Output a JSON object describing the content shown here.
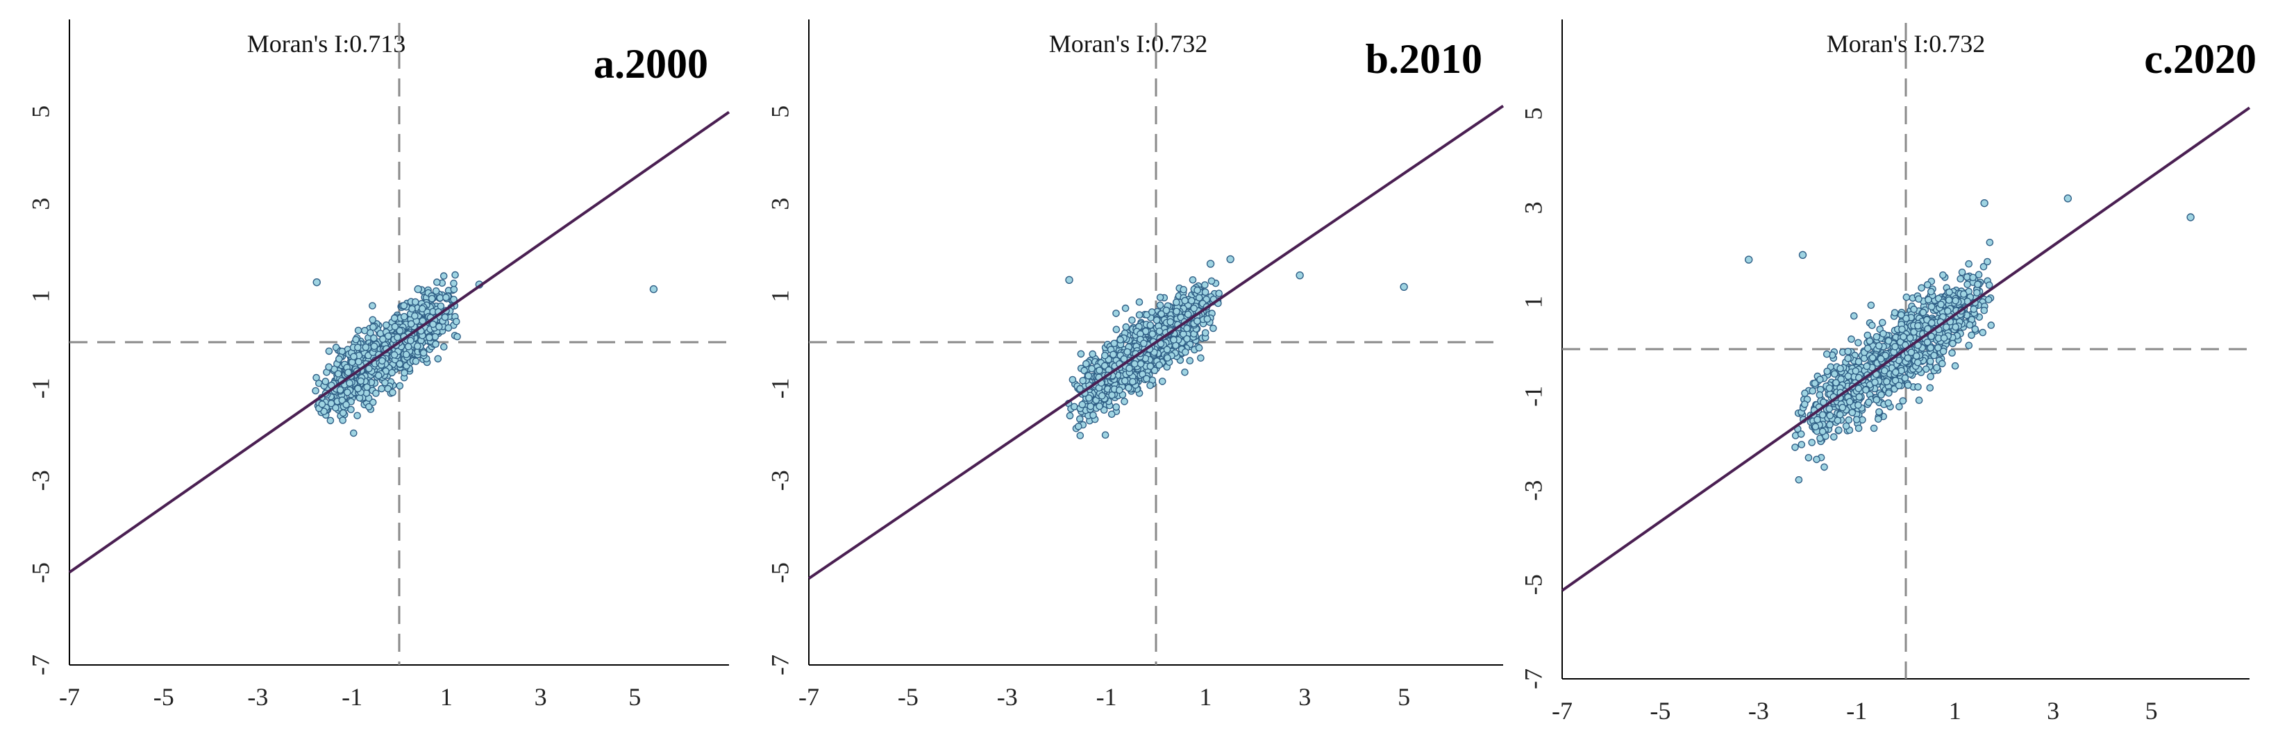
{
  "colors": {
    "point_fill": "#9fd4e2",
    "point_stroke": "#2f5f86",
    "regression_line": "#4a1f52",
    "reference_line": "#8a8a8a"
  },
  "chart_data": [
    {
      "type": "scatter",
      "panel_label": "a.2000",
      "stat_text": "Moran's I:0.713",
      "moran_i": 0.713,
      "xlim": [
        -7,
        7
      ],
      "ylim": [
        -7,
        7
      ],
      "xticks": [
        -7,
        -5,
        -3,
        -1,
        1,
        3,
        5
      ],
      "yticks": [
        -7,
        -5,
        -3,
        -1,
        1,
        3,
        5
      ],
      "reference_lines": {
        "x": 0,
        "y": 0
      },
      "cloud": {
        "x_range": [
          -1.8,
          1.3
        ],
        "slope": 0.713,
        "spread": 0.38,
        "count": 900
      },
      "outliers": [
        [
          -1.75,
          1.3
        ],
        [
          1.7,
          1.25
        ],
        [
          5.4,
          1.15
        ],
        [
          0.4,
          1.15
        ]
      ],
      "regression": {
        "slope": 0.713,
        "intercept": 0,
        "x_range": [
          -7,
          7
        ]
      },
      "grid": false
    },
    {
      "type": "scatter",
      "panel_label": "b.2010",
      "stat_text": "Moran's I:0.732",
      "moran_i": 0.732,
      "xlim": [
        -7,
        7
      ],
      "ylim": [
        -7,
        7
      ],
      "xticks": [
        -7,
        -5,
        -3,
        -1,
        1,
        3,
        5
      ],
      "yticks": [
        -7,
        -5,
        -3,
        -1,
        1,
        3,
        5
      ],
      "reference_lines": {
        "x": 0,
        "y": 0
      },
      "cloud": {
        "x_range": [
          -1.8,
          1.3
        ],
        "slope": 0.732,
        "spread": 0.36,
        "count": 900
      },
      "outliers": [
        [
          -1.75,
          1.35
        ],
        [
          1.5,
          1.8
        ],
        [
          2.9,
          1.45
        ],
        [
          5.0,
          1.2
        ],
        [
          1.1,
          1.7
        ]
      ],
      "regression": {
        "slope": 0.732,
        "intercept": 0,
        "x_range": [
          -7,
          7
        ]
      },
      "grid": false
    },
    {
      "type": "scatter",
      "panel_label": "c.2020",
      "stat_text": "Moran's I:0.732",
      "moran_i": 0.732,
      "xlim": [
        -7,
        7
      ],
      "ylim": [
        -7,
        7
      ],
      "xticks": [
        -7,
        -5,
        -3,
        -1,
        1,
        3,
        5
      ],
      "yticks": [
        -7,
        -5,
        -3,
        -1,
        1,
        3,
        5
      ],
      "reference_lines": {
        "x": 0,
        "y": 0
      },
      "cloud": {
        "x_range": [
          -2.3,
          1.8
        ],
        "slope": 0.732,
        "spread": 0.45,
        "count": 1000
      },
      "outliers": [
        [
          -3.2,
          1.9
        ],
        [
          -2.1,
          2.0
        ],
        [
          3.3,
          3.2
        ],
        [
          5.8,
          2.8
        ],
        [
          1.6,
          3.1
        ]
      ],
      "regression": {
        "slope": 0.732,
        "intercept": 0,
        "x_range": [
          -7,
          7
        ]
      },
      "grid": false
    }
  ]
}
